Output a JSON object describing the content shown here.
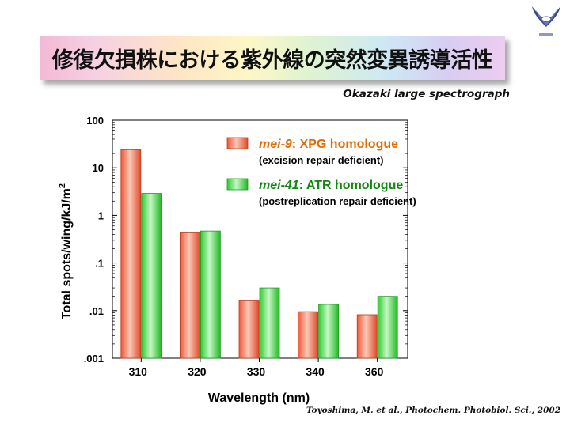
{
  "slide": {
    "title": "修復欠損株における紫外線の突然変異誘導活性",
    "subtitle": "Okazaki large spectrograph",
    "citation": "Toyoshima, M. et al., Photochem. Photobiol. Sci., 2002",
    "logo_icon": "university-emblem-icon"
  },
  "chart_data": {
    "type": "bar",
    "xlabel": "Wavelength (nm)",
    "ylabel": "Total spots/wing/kJ/m",
    "ylabel_superscript": "2",
    "yscale": "log",
    "ylim": [
      0.001,
      100
    ],
    "yticks": [
      {
        "value": 100,
        "label": "100"
      },
      {
        "value": 10,
        "label": "10"
      },
      {
        "value": 1,
        "label": "1"
      },
      {
        "value": 0.1,
        "label": ".1"
      },
      {
        "value": 0.01,
        "label": ".01"
      },
      {
        "value": 0.001,
        "label": ".001"
      }
    ],
    "categories": [
      "310",
      "320",
      "330",
      "340",
      "360"
    ],
    "series": [
      {
        "name_italic": "mei-9",
        "name_rest": ": XPG homologue",
        "description": "(excision repair deficient)",
        "color": "#f0583a",
        "color_light": "#fbc8b6",
        "values": [
          24,
          0.43,
          0.016,
          0.0095,
          0.0082
        ]
      },
      {
        "name_italic": "mei-41",
        "name_rest": ": ATR homologue",
        "description": "(postreplication repair deficient)",
        "color": "#33d633",
        "color_light": "#c6f7c6",
        "values": [
          2.9,
          0.47,
          0.03,
          0.0135,
          0.02
        ]
      }
    ],
    "legend_position": "top-right",
    "label_colors": [
      "#e36b00",
      "#118811"
    ],
    "grid": false
  }
}
